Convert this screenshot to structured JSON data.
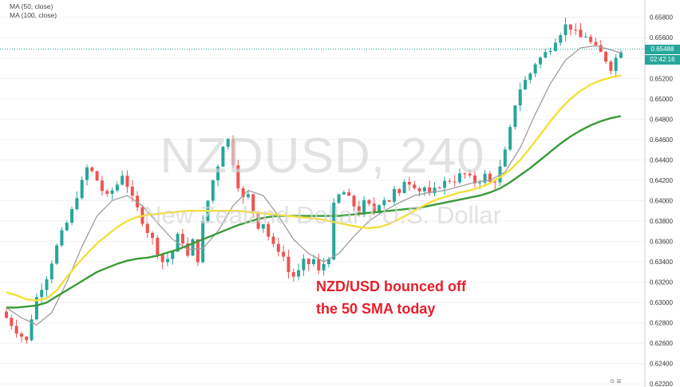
{
  "chart_data": {
    "type": "candlestick",
    "title": "NZDUSD, 240",
    "subtitle": "New Zealand Dollar / U.S. Dollar",
    "legend": [
      {
        "label": "MA (50, close)",
        "color": "#f3e03a"
      },
      {
        "label": "MA (100, close)",
        "color": "#3a9a3a"
      }
    ],
    "ylim": [
      0.6217,
      0.6597
    ],
    "yticks": [
      "0.65800",
      "0.65600",
      "0.65400",
      "0.65200",
      "0.65000",
      "0.64800",
      "0.64600",
      "0.64400",
      "0.64200",
      "0.64000",
      "0.63800",
      "0.63600",
      "0.63400",
      "0.63200",
      "0.63000",
      "0.62800",
      "0.62600",
      "0.62400",
      "0.62200"
    ],
    "current_price": {
      "label": "0.65488",
      "value": 0.65488
    },
    "countdown": "02:42:16",
    "annotation": [
      "NZD/USD bounced off",
      "the 50 SMA today"
    ],
    "close_path": [
      [
        0,
        0.6285
      ],
      [
        2,
        0.6272
      ],
      [
        4,
        0.6262
      ],
      [
        5,
        0.6285
      ],
      [
        6,
        0.6305
      ],
      [
        8,
        0.6325
      ],
      [
        9,
        0.634
      ],
      [
        10,
        0.6355
      ],
      [
        11,
        0.6368
      ],
      [
        12,
        0.6378
      ],
      [
        13,
        0.639
      ],
      [
        14,
        0.6405
      ],
      [
        15,
        0.6418
      ],
      [
        16,
        0.6432
      ],
      [
        17,
        0.6428
      ],
      [
        18,
        0.642
      ],
      [
        19,
        0.641
      ],
      [
        20,
        0.6404
      ],
      [
        21,
        0.641
      ],
      [
        22,
        0.6416
      ],
      [
        23,
        0.6426
      ],
      [
        24,
        0.6415
      ],
      [
        25,
        0.6402
      ],
      [
        26,
        0.6392
      ],
      [
        27,
        0.638
      ],
      [
        28,
        0.637
      ],
      [
        29,
        0.6362
      ],
      [
        30,
        0.635
      ],
      [
        31,
        0.634
      ],
      [
        32,
        0.6343
      ],
      [
        33,
        0.635
      ],
      [
        34,
        0.6365
      ],
      [
        35,
        0.636
      ],
      [
        36,
        0.6345
      ],
      [
        37,
        0.636
      ],
      [
        38,
        0.6342
      ],
      [
        39,
        0.6378
      ],
      [
        40,
        0.64
      ],
      [
        41,
        0.642
      ],
      [
        42,
        0.6435
      ],
      [
        43,
        0.6455
      ],
      [
        44,
        0.646
      ],
      [
        45,
        0.6437
      ],
      [
        46,
        0.6415
      ],
      [
        47,
        0.6402
      ],
      [
        48,
        0.6405
      ],
      [
        49,
        0.639
      ],
      [
        50,
        0.6375
      ],
      [
        51,
        0.6378
      ],
      [
        52,
        0.6365
      ],
      [
        53,
        0.6355
      ],
      [
        54,
        0.6352
      ],
      [
        55,
        0.6345
      ],
      [
        56,
        0.633
      ],
      [
        57,
        0.6326
      ],
      [
        58,
        0.633
      ],
      [
        59,
        0.634
      ],
      [
        60,
        0.6338
      ],
      [
        61,
        0.6342
      ],
      [
        62,
        0.633
      ],
      [
        63,
        0.6338
      ],
      [
        64,
        0.6345
      ],
      [
        65,
        0.6395
      ],
      [
        66,
        0.6405
      ],
      [
        67,
        0.6408
      ],
      [
        68,
        0.6402
      ],
      [
        69,
        0.6395
      ],
      [
        70,
        0.6388
      ],
      [
        71,
        0.6398
      ],
      [
        72,
        0.6395
      ],
      [
        73,
        0.639
      ],
      [
        74,
        0.6398
      ],
      [
        75,
        0.6402
      ],
      [
        76,
        0.64
      ],
      [
        77,
        0.641
      ],
      [
        78,
        0.6405
      ],
      [
        79,
        0.642
      ],
      [
        80,
        0.6418
      ],
      [
        81,
        0.6415
      ],
      [
        82,
        0.641
      ],
      [
        83,
        0.6413
      ],
      [
        84,
        0.6405
      ],
      [
        85,
        0.641
      ],
      [
        86,
        0.6415
      ],
      [
        87,
        0.6418
      ],
      [
        88,
        0.642
      ],
      [
        89,
        0.642
      ],
      [
        90,
        0.6425
      ],
      [
        91,
        0.6426
      ],
      [
        92,
        0.6422
      ],
      [
        93,
        0.6418
      ],
      [
        94,
        0.642
      ],
      [
        95,
        0.6425
      ],
      [
        96,
        0.6418
      ],
      [
        97,
        0.642
      ],
      [
        98,
        0.6432
      ],
      [
        99,
        0.6448
      ],
      [
        100,
        0.647
      ],
      [
        101,
        0.6495
      ],
      [
        102,
        0.651
      ],
      [
        103,
        0.6518
      ],
      [
        104,
        0.6525
      ],
      [
        105,
        0.6535
      ],
      [
        106,
        0.654
      ],
      [
        107,
        0.6545
      ],
      [
        108,
        0.655
      ],
      [
        109,
        0.6558
      ],
      [
        110,
        0.6565
      ],
      [
        111,
        0.6572
      ],
      [
        112,
        0.657
      ],
      [
        113,
        0.6565
      ],
      [
        114,
        0.656
      ],
      [
        115,
        0.6562
      ],
      [
        116,
        0.6555
      ],
      [
        117,
        0.655
      ],
      [
        118,
        0.6545
      ],
      [
        119,
        0.6538
      ],
      [
        120,
        0.653
      ],
      [
        121,
        0.654
      ],
      [
        122,
        0.6548
      ]
    ],
    "ma50_path": [
      [
        0,
        0.631
      ],
      [
        2,
        0.6307
      ],
      [
        4,
        0.6303
      ],
      [
        6,
        0.6302
      ],
      [
        8,
        0.6304
      ],
      [
        10,
        0.6312
      ],
      [
        12,
        0.6325
      ],
      [
        14,
        0.6337
      ],
      [
        16,
        0.6348
      ],
      [
        18,
        0.6358
      ],
      [
        20,
        0.6366
      ],
      [
        22,
        0.6374
      ],
      [
        24,
        0.638
      ],
      [
        26,
        0.6384
      ],
      [
        28,
        0.6386
      ],
      [
        30,
        0.6387
      ],
      [
        32,
        0.6388
      ],
      [
        34,
        0.6389
      ],
      [
        36,
        0.639
      ],
      [
        38,
        0.639
      ],
      [
        40,
        0.639
      ],
      [
        42,
        0.639
      ],
      [
        44,
        0.639
      ],
      [
        46,
        0.639
      ],
      [
        48,
        0.6389
      ],
      [
        50,
        0.6388
      ],
      [
        52,
        0.6387
      ],
      [
        54,
        0.6386
      ],
      [
        56,
        0.6385
      ],
      [
        58,
        0.6384
      ],
      [
        60,
        0.6383
      ],
      [
        62,
        0.6382
      ],
      [
        64,
        0.638
      ],
      [
        66,
        0.6378
      ],
      [
        68,
        0.6376
      ],
      [
        70,
        0.6374
      ],
      [
        72,
        0.6373
      ],
      [
        74,
        0.6374
      ],
      [
        76,
        0.6377
      ],
      [
        78,
        0.6382
      ],
      [
        80,
        0.6387
      ],
      [
        82,
        0.6393
      ],
      [
        84,
        0.6398
      ],
      [
        86,
        0.6402
      ],
      [
        88,
        0.6405
      ],
      [
        90,
        0.6408
      ],
      [
        92,
        0.641
      ],
      [
        94,
        0.6413
      ],
      [
        96,
        0.6417
      ],
      [
        98,
        0.6423
      ],
      [
        100,
        0.643
      ],
      [
        102,
        0.644
      ],
      [
        104,
        0.6452
      ],
      [
        106,
        0.6465
      ],
      [
        108,
        0.6478
      ],
      [
        110,
        0.649
      ],
      [
        112,
        0.65
      ],
      [
        114,
        0.6508
      ],
      [
        116,
        0.6514
      ],
      [
        118,
        0.6518
      ],
      [
        120,
        0.6521
      ],
      [
        122,
        0.6523
      ]
    ],
    "ma100_path": [
      [
        0,
        0.6295
      ],
      [
        2,
        0.6295
      ],
      [
        4,
        0.6296
      ],
      [
        6,
        0.6297
      ],
      [
        8,
        0.63
      ],
      [
        10,
        0.6306
      ],
      [
        12,
        0.6312
      ],
      [
        14,
        0.6318
      ],
      [
        16,
        0.6324
      ],
      [
        18,
        0.633
      ],
      [
        20,
        0.6334
      ],
      [
        22,
        0.6338
      ],
      [
        24,
        0.6341
      ],
      [
        26,
        0.6343
      ],
      [
        28,
        0.6344
      ],
      [
        30,
        0.6346
      ],
      [
        32,
        0.6349
      ],
      [
        34,
        0.6352
      ],
      [
        36,
        0.6356
      ],
      [
        38,
        0.636
      ],
      [
        40,
        0.6364
      ],
      [
        42,
        0.6368
      ],
      [
        44,
        0.6372
      ],
      [
        46,
        0.6376
      ],
      [
        48,
        0.6379
      ],
      [
        50,
        0.6382
      ],
      [
        52,
        0.6384
      ],
      [
        54,
        0.6385
      ],
      [
        56,
        0.6385
      ],
      [
        58,
        0.6385
      ],
      [
        60,
        0.6385
      ],
      [
        62,
        0.6385
      ],
      [
        64,
        0.6385
      ],
      [
        66,
        0.6385
      ],
      [
        68,
        0.6386
      ],
      [
        70,
        0.6387
      ],
      [
        72,
        0.6388
      ],
      [
        74,
        0.6389
      ],
      [
        76,
        0.639
      ],
      [
        78,
        0.6391
      ],
      [
        80,
        0.6392
      ],
      [
        82,
        0.6393
      ],
      [
        84,
        0.6395
      ],
      [
        86,
        0.6397
      ],
      [
        88,
        0.6399
      ],
      [
        90,
        0.6401
      ],
      [
        92,
        0.6403
      ],
      [
        94,
        0.6405
      ],
      [
        96,
        0.6408
      ],
      [
        98,
        0.6412
      ],
      [
        100,
        0.6418
      ],
      [
        102,
        0.6425
      ],
      [
        104,
        0.6432
      ],
      [
        106,
        0.644
      ],
      [
        108,
        0.6448
      ],
      [
        110,
        0.6456
      ],
      [
        112,
        0.6463
      ],
      [
        114,
        0.6469
      ],
      [
        116,
        0.6474
      ],
      [
        118,
        0.6478
      ],
      [
        120,
        0.6481
      ],
      [
        122,
        0.6483
      ]
    ],
    "ma_fast_path": [
      [
        0,
        0.6295
      ],
      [
        3,
        0.6285
      ],
      [
        6,
        0.6278
      ],
      [
        9,
        0.629
      ],
      [
        12,
        0.632
      ],
      [
        15,
        0.6355
      ],
      [
        18,
        0.6385
      ],
      [
        21,
        0.64
      ],
      [
        24,
        0.6405
      ],
      [
        27,
        0.6395
      ],
      [
        30,
        0.6378
      ],
      [
        33,
        0.6362
      ],
      [
        36,
        0.6352
      ],
      [
        39,
        0.6353
      ],
      [
        42,
        0.637
      ],
      [
        45,
        0.6395
      ],
      [
        48,
        0.641
      ],
      [
        51,
        0.6405
      ],
      [
        54,
        0.6385
      ],
      [
        57,
        0.6362
      ],
      [
        60,
        0.6348
      ],
      [
        63,
        0.634
      ],
      [
        66,
        0.6348
      ],
      [
        69,
        0.6365
      ],
      [
        72,
        0.638
      ],
      [
        75,
        0.639
      ],
      [
        78,
        0.6398
      ],
      [
        81,
        0.6405
      ],
      [
        84,
        0.6408
      ],
      [
        87,
        0.641
      ],
      [
        90,
        0.6414
      ],
      [
        93,
        0.6418
      ],
      [
        96,
        0.642
      ],
      [
        99,
        0.6428
      ],
      [
        102,
        0.6452
      ],
      [
        105,
        0.6485
      ],
      [
        108,
        0.6515
      ],
      [
        111,
        0.6538
      ],
      [
        114,
        0.655
      ],
      [
        117,
        0.6552
      ],
      [
        120,
        0.6548
      ],
      [
        122,
        0.6545
      ]
    ],
    "colors": {
      "up": "#26a69a",
      "down": "#ef5350",
      "ma50": "#f3e03a",
      "ma100": "#3a9a3a",
      "fast": "#9e9e9e",
      "axis_text": "#333333"
    }
  },
  "watermark": {
    "symbol": "NZDUSD, 240",
    "description": "New Zealand Dollar / U.S. Dollar"
  }
}
